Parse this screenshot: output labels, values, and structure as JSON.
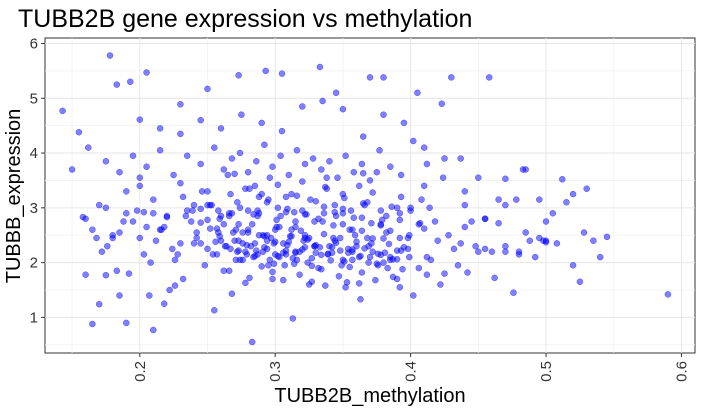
{
  "chart_data": {
    "type": "scatter",
    "title": "TUBB2B gene expression vs methylation",
    "xlabel": "TUBB2B_methylation",
    "ylabel": "TUBBB_expression",
    "xlim": [
      0.13,
      0.61
    ],
    "ylim": [
      0.35,
      6.1
    ],
    "x_ticks": [
      "0.2",
      "0.3",
      "0.4",
      "0.5",
      "0.6"
    ],
    "y_ticks": [
      "1",
      "2",
      "3",
      "4",
      "5",
      "6"
    ],
    "grid": true,
    "legend": "none",
    "point_color": "#0000ff",
    "point_opacity": 0.5,
    "x": [
      0.143,
      0.155,
      0.16,
      0.165,
      0.17,
      0.175,
      0.178,
      0.183,
      0.185,
      0.19,
      0.193,
      0.2,
      0.205,
      0.207,
      0.21,
      0.218,
      0.222,
      0.226,
      0.23,
      0.25,
      0.255,
      0.262,
      0.268,
      0.273,
      0.278,
      0.283,
      0.293,
      0.298,
      0.305,
      0.313,
      0.325,
      0.333,
      0.345,
      0.353,
      0.363,
      0.37,
      0.38,
      0.392,
      0.405,
      0.412,
      0.423,
      0.43,
      0.442,
      0.458,
      0.47,
      0.485,
      0.498,
      0.512,
      0.525,
      0.54,
      0.59,
      0.175,
      0.188,
      0.203,
      0.215,
      0.23,
      0.245,
      0.258,
      0.27,
      0.285,
      0.3,
      0.312,
      0.322,
      0.338,
      0.35,
      0.365,
      0.38,
      0.395,
      0.41,
      0.44,
      0.455,
      0.47,
      0.483,
      0.5,
      0.52,
      0.545,
      0.158,
      0.165,
      0.172,
      0.18,
      0.19,
      0.198,
      0.205,
      0.212,
      0.22,
      0.228,
      0.235,
      0.242,
      0.25,
      0.256,
      0.262,
      0.268,
      0.272,
      0.276,
      0.28,
      0.284,
      0.288,
      0.292,
      0.296,
      0.3,
      0.304,
      0.308,
      0.312,
      0.316,
      0.32,
      0.325,
      0.33,
      0.335,
      0.34,
      0.345,
      0.35,
      0.355,
      0.36,
      0.366,
      0.372,
      0.378,
      0.385,
      0.392,
      0.4,
      0.41,
      0.42,
      0.432,
      0.445,
      0.46,
      0.478,
      0.495,
      0.168,
      0.176,
      0.185,
      0.195,
      0.203,
      0.21,
      0.218,
      0.226,
      0.234,
      0.242,
      0.25,
      0.257,
      0.263,
      0.269,
      0.274,
      0.279,
      0.283,
      0.287,
      0.291,
      0.295,
      0.299,
      0.303,
      0.307,
      0.311,
      0.315,
      0.319,
      0.324,
      0.329,
      0.334,
      0.339,
      0.344,
      0.349,
      0.354,
      0.359,
      0.364,
      0.37,
      0.376,
      0.382,
      0.39,
      0.398,
      0.406,
      0.415,
      0.425,
      0.437,
      0.45,
      0.465,
      0.48,
      0.5,
      0.52,
      0.535,
      0.183,
      0.192,
      0.2,
      0.208,
      0.216,
      0.224,
      0.232,
      0.24,
      0.248,
      0.254,
      0.26,
      0.266,
      0.271,
      0.276,
      0.281,
      0.286,
      0.29,
      0.294,
      0.298,
      0.302,
      0.306,
      0.31,
      0.314,
      0.318,
      0.322,
      0.327,
      0.332,
      0.337,
      0.342,
      0.347,
      0.352,
      0.357,
      0.362,
      0.368,
      0.374,
      0.38,
      0.387,
      0.394,
      0.402,
      0.412,
      0.422,
      0.435,
      0.448,
      0.462,
      0.476,
      0.492,
      0.508,
      0.528,
      0.16,
      0.17,
      0.18,
      0.19,
      0.2,
      0.21,
      0.22,
      0.23,
      0.24,
      0.25,
      0.258,
      0.265,
      0.272,
      0.278,
      0.284,
      0.29,
      0.296,
      0.302,
      0.308,
      0.314,
      0.32,
      0.326,
      0.332,
      0.338,
      0.344,
      0.35,
      0.356,
      0.362,
      0.368,
      0.375,
      0.382,
      0.39,
      0.398,
      0.408,
      0.418,
      0.428,
      0.44,
      0.455,
      0.47,
      0.485,
      0.5,
      0.515,
      0.53,
      0.175,
      0.185,
      0.195,
      0.205,
      0.215,
      0.225,
      0.235,
      0.245,
      0.255,
      0.262,
      0.268,
      0.274,
      0.28,
      0.286,
      0.292,
      0.298,
      0.304,
      0.31,
      0.316,
      0.322,
      0.328,
      0.334,
      0.34,
      0.346,
      0.352,
      0.358,
      0.364,
      0.37,
      0.377,
      0.385,
      0.393,
      0.402,
      0.412,
      0.424,
      0.437,
      0.45,
      0.465,
      0.48,
      0.495,
      0.15,
      0.162,
      0.2,
      0.215,
      0.23,
      0.245,
      0.26,
      0.275,
      0.29,
      0.305,
      0.32,
      0.335,
      0.35,
      0.365,
      0.38,
      0.395,
      0.41,
      0.425,
      0.44,
      0.455,
      0.47,
      0.488,
      0.505,
      0.245,
      0.252,
      0.259,
      0.266,
      0.273,
      0.28,
      0.287,
      0.294,
      0.301,
      0.308,
      0.315,
      0.322,
      0.329,
      0.336,
      0.343,
      0.35,
      0.357,
      0.364,
      0.371,
      0.378,
      0.385,
      0.392,
      0.399,
      0.25,
      0.257,
      0.264,
      0.271,
      0.278,
      0.285,
      0.292,
      0.299,
      0.306,
      0.313,
      0.32,
      0.327,
      0.334,
      0.341,
      0.348,
      0.355,
      0.362,
      0.369,
      0.376,
      0.383,
      0.39,
      0.232,
      0.239,
      0.246,
      0.253,
      0.26,
      0.267,
      0.274,
      0.281,
      0.288,
      0.295,
      0.302,
      0.309,
      0.316,
      0.323,
      0.33,
      0.337,
      0.344,
      0.351,
      0.358,
      0.365,
      0.372,
      0.379,
      0.386,
      0.393,
      0.4,
      0.407,
      0.414,
      0.238,
      0.245,
      0.252,
      0.259,
      0.266,
      0.273,
      0.28,
      0.287,
      0.294,
      0.301,
      0.308,
      0.315,
      0.322,
      0.329,
      0.336,
      0.343,
      0.35,
      0.357,
      0.364,
      0.371,
      0.378,
      0.385,
      0.392,
      0.399,
      0.406,
      0.267,
      0.273,
      0.279,
      0.285,
      0.291,
      0.297,
      0.303,
      0.309,
      0.315,
      0.321,
      0.327,
      0.333,
      0.339,
      0.345,
      0.351,
      0.357,
      0.363,
      0.369,
      0.375,
      0.381,
      0.387,
      0.393,
      0.27,
      0.276,
      0.282,
      0.288,
      0.294,
      0.3,
      0.306,
      0.312,
      0.318,
      0.324,
      0.33,
      0.336,
      0.342,
      0.348,
      0.354,
      0.36,
      0.366,
      0.372,
      0.378,
      0.384,
      0.39
    ],
    "y": [
      4.77,
      4.38,
      1.78,
      0.88,
      1.24,
      1.77,
      5.78,
      5.25,
      1.4,
      0.9,
      5.3,
      4.61,
      5.47,
      1.4,
      0.77,
      1.25,
      1.5,
      1.58,
      4.89,
      5.17,
      1.13,
      1.85,
      1.43,
      5.42,
      1.63,
      0.55,
      5.5,
      1.7,
      5.45,
      0.98,
      1.6,
      5.57,
      5.1,
      1.64,
      1.33,
      5.38,
      5.38,
      1.55,
      5.1,
      1.78,
      4.9,
      5.38,
      1.82,
      5.38,
      3.53,
      3.7,
      2.4,
      3.52,
      1.65,
      2.1,
      1.42,
      3.0,
      2.75,
      2.92,
      2.6,
      2.35,
      2.73,
      2.55,
      3.62,
      3.4,
      2.15,
      3.25,
      2.45,
      3.55,
      2.98,
      3.63,
      2.44,
      2.28,
      3.4,
      2.65,
      2.25,
      3.05,
      3.7,
      2.37,
      3.25,
      2.47,
      2.83,
      2.6,
      2.2,
      2.5,
      3.3,
      2.95,
      2.65,
      2.4,
      2.83,
      2.15,
      2.95,
      2.55,
      3.05,
      2.38,
      2.7,
      2.9,
      2.2,
      2.35,
      2.6,
      2.1,
      3.2,
      2.48,
      2.05,
      2.38,
      2.85,
      2.22,
      2.6,
      2.05,
      2.95,
      2.45,
      2.18,
      2.75,
      2.3,
      2.85,
      2.05,
      2.6,
      2.3,
      3.05,
      2.2,
      2.7,
      2.1,
      2.9,
      3.0,
      2.62,
      2.4,
      2.25,
      2.75,
      2.2,
      3.15,
      2.45,
      2.45,
      2.3,
      2.55,
      2.75,
      2.15,
      2.9,
      2.65,
      2.05,
      2.85,
      2.45,
      2.78,
      2.62,
      2.3,
      2.55,
      2.05,
      2.32,
      2.7,
      2.15,
      2.5,
      1.95,
      2.35,
      2.65,
      1.95,
      2.48,
      2.2,
      2.58,
      2.0,
      2.3,
      1.88,
      2.15,
      2.4,
      1.95,
      2.25,
      2.5,
      1.82,
      2.1,
      1.95,
      2.55,
      1.7,
      2.25,
      1.9,
      2.05,
      1.8,
      2.35,
      2.2,
      2.72,
      2.15,
      2.4,
      1.95,
      2.4,
      1.85,
      1.8,
      2.45,
      2.0,
      2.6,
      2.25,
      1.7,
      2.35,
      1.95,
      2.15,
      2.4,
      1.85,
      2.6,
      2.05,
      1.72,
      2.22,
      1.93,
      2.5,
      1.83,
      2.12,
      1.68,
      2.38,
      1.98,
      1.78,
      2.28,
      1.65,
      1.9,
      1.58,
      2.18,
      1.75,
      1.55,
      2.05,
      1.62,
      2.45,
      1.68,
      2.0,
      1.74,
      1.88,
      1.4,
      2.1,
      1.6,
      1.95,
      2.3,
      1.72,
      1.45,
      2.1,
      2.35,
      2.55,
      2.8,
      3.05,
      2.45,
      2.9,
      3.4,
      3.15,
      2.85,
      3.45,
      3.05,
      3.3,
      2.95,
      3.6,
      3.1,
      3.35,
      2.88,
      3.25,
      3.55,
      3.0,
      3.2,
      2.92,
      3.48,
      3.15,
      2.8,
      3.35,
      3.05,
      3.25,
      2.95,
      3.4,
      3.1,
      3.65,
      2.85,
      3.0,
      2.45,
      3.15,
      2.75,
      2.5,
      3.05,
      2.8,
      2.3,
      2.55,
      2.75,
      3.1,
      3.35,
      3.85,
      3.65,
      3.95,
      3.75,
      4.05,
      3.6,
      3.95,
      3.8,
      4.1,
      3.7,
      3.9,
      4.0,
      3.65,
      3.85,
      4.15,
      3.75,
      3.95,
      3.6,
      4.05,
      3.8,
      3.9,
      3.7,
      3.85,
      3.55,
      3.95,
      3.65,
      3.8,
      3.5,
      4.05,
      3.75,
      3.6,
      4.22,
      3.8,
      3.55,
      3.9,
      3.55,
      3.15,
      2.2,
      3.15,
      3.7,
      4.1,
      3.55,
      4.45,
      4.35,
      4.6,
      4.45,
      4.7,
      4.55,
      4.4,
      4.85,
      4.95,
      4.8,
      4.3,
      4.7,
      4.55,
      4.1,
      3.9,
      3.3,
      2.8,
      2.2,
      2.4,
      2.9,
      2.35,
      2.62,
      2.48,
      2.85,
      2.22,
      2.55,
      2.95,
      2.4,
      2.65,
      2.15,
      2.75,
      2.5,
      2.3,
      2.9,
      2.45,
      2.7,
      2.2,
      2.58,
      2.35,
      2.68,
      2.05,
      2.45,
      2.1,
      2.25,
      2.15,
      2.3,
      2.05,
      2.2,
      2.12,
      2.28,
      1.98,
      2.18,
      2.08,
      2.24,
      1.94,
      2.14,
      2.04,
      2.22,
      1.92,
      2.1,
      2.0,
      2.16,
      1.9,
      2.06,
      3.2,
      2.95,
      3.3,
      3.05,
      2.85,
      3.25,
      3.0,
      3.35,
      2.9,
      3.15,
      3.42,
      2.98,
      3.22,
      2.88,
      3.12,
      3.38,
      2.92,
      3.18,
      2.82,
      3.08,
      3.28,
      2.78,
      3.02,
      3.2,
      2.95,
      2.72,
      3.0,
      2.75,
      2.98,
      3.05,
      2.8,
      2.9,
      2.7,
      2.95,
      2.85,
      3.1,
      2.78,
      2.92,
      2.65,
      2.88,
      2.75,
      3.02,
      2.68,
      2.9,
      2.6,
      2.82,
      2.72,
      2.95,
      2.58,
      2.78,
      2.5,
      2.7,
      2.25,
      2.4,
      2.15,
      2.35,
      2.2,
      2.45,
      2.1,
      2.32,
      2.18,
      2.4,
      2.08,
      2.28,
      2.16,
      2.36,
      2.02,
      2.24,
      2.12,
      2.3,
      1.98,
      2.18,
      2.06,
      2.22,
      2.4,
      2.55,
      2.3,
      2.5,
      2.25,
      2.6,
      2.35,
      2.48,
      2.2,
      2.42,
      2.32,
      2.52,
      2.28,
      2.45,
      2.18,
      2.38,
      2.26,
      2.44,
      2.14,
      2.34,
      2.22
    ]
  }
}
